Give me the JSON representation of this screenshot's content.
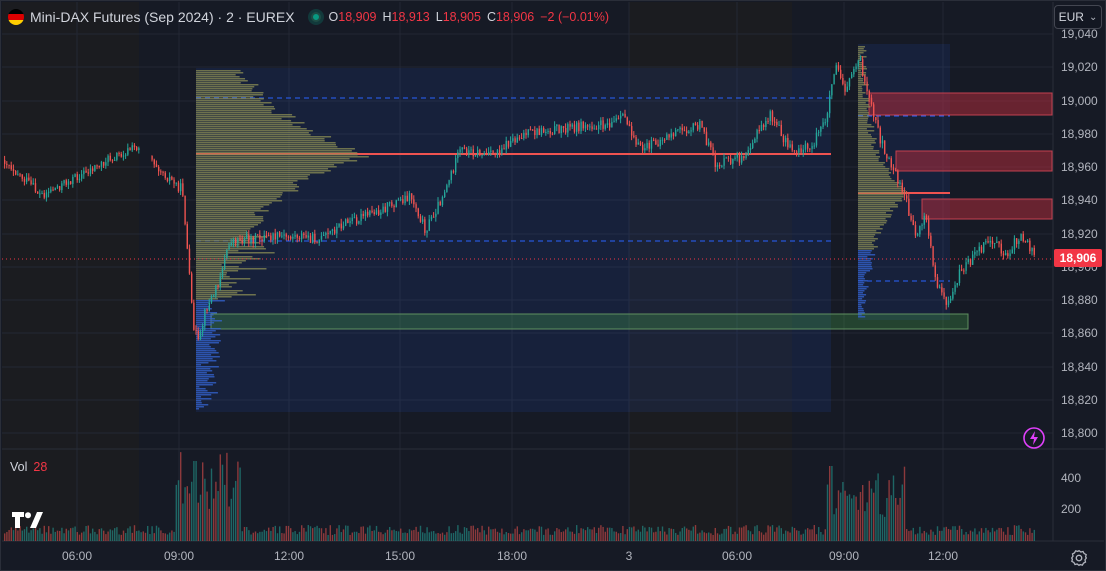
{
  "header": {
    "symbol_title": "Mini-DAX Futures (Sep 2024) · 2 · EUREX",
    "ohlc": {
      "o_label": "O",
      "o_value": "18,909",
      "h_label": "H",
      "h_value": "18,913",
      "l_label": "L",
      "l_value": "18,905",
      "c_label": "C",
      "c_value": "18,906",
      "change": "−2 (−0.01%)"
    }
  },
  "currency_selector": {
    "value": "EUR"
  },
  "last_price_label": "18,906",
  "volume_legend": {
    "label": "Vol",
    "value": "28"
  },
  "price_axis": {
    "ticks": [
      "19,040",
      "19,020",
      "19,000",
      "18,980",
      "18,960",
      "18,940",
      "18,920",
      "18,900",
      "18,880",
      "18,860",
      "18,840",
      "18,820",
      "18,800"
    ]
  },
  "volume_axis": {
    "ticks": [
      "400",
      "200"
    ]
  },
  "time_axis": {
    "ticks": [
      "06:00",
      "09:00",
      "12:00",
      "15:00",
      "18:00",
      "3",
      "06:00",
      "09:00",
      "12:00"
    ]
  },
  "colors": {
    "up": "#26a69a",
    "down": "#ef5350",
    "last_price": "#f23645",
    "background": "#161a25",
    "grid": "#232733",
    "text": "#b2b5be"
  },
  "icons": {
    "flag": "germany-flag-icon",
    "status": "market-open-dot-icon",
    "currency_chevron": "chevron-down-icon",
    "logo": "tradingview-logo-icon",
    "alert": "lightning-alert-icon",
    "settings": "gear-icon"
  }
}
